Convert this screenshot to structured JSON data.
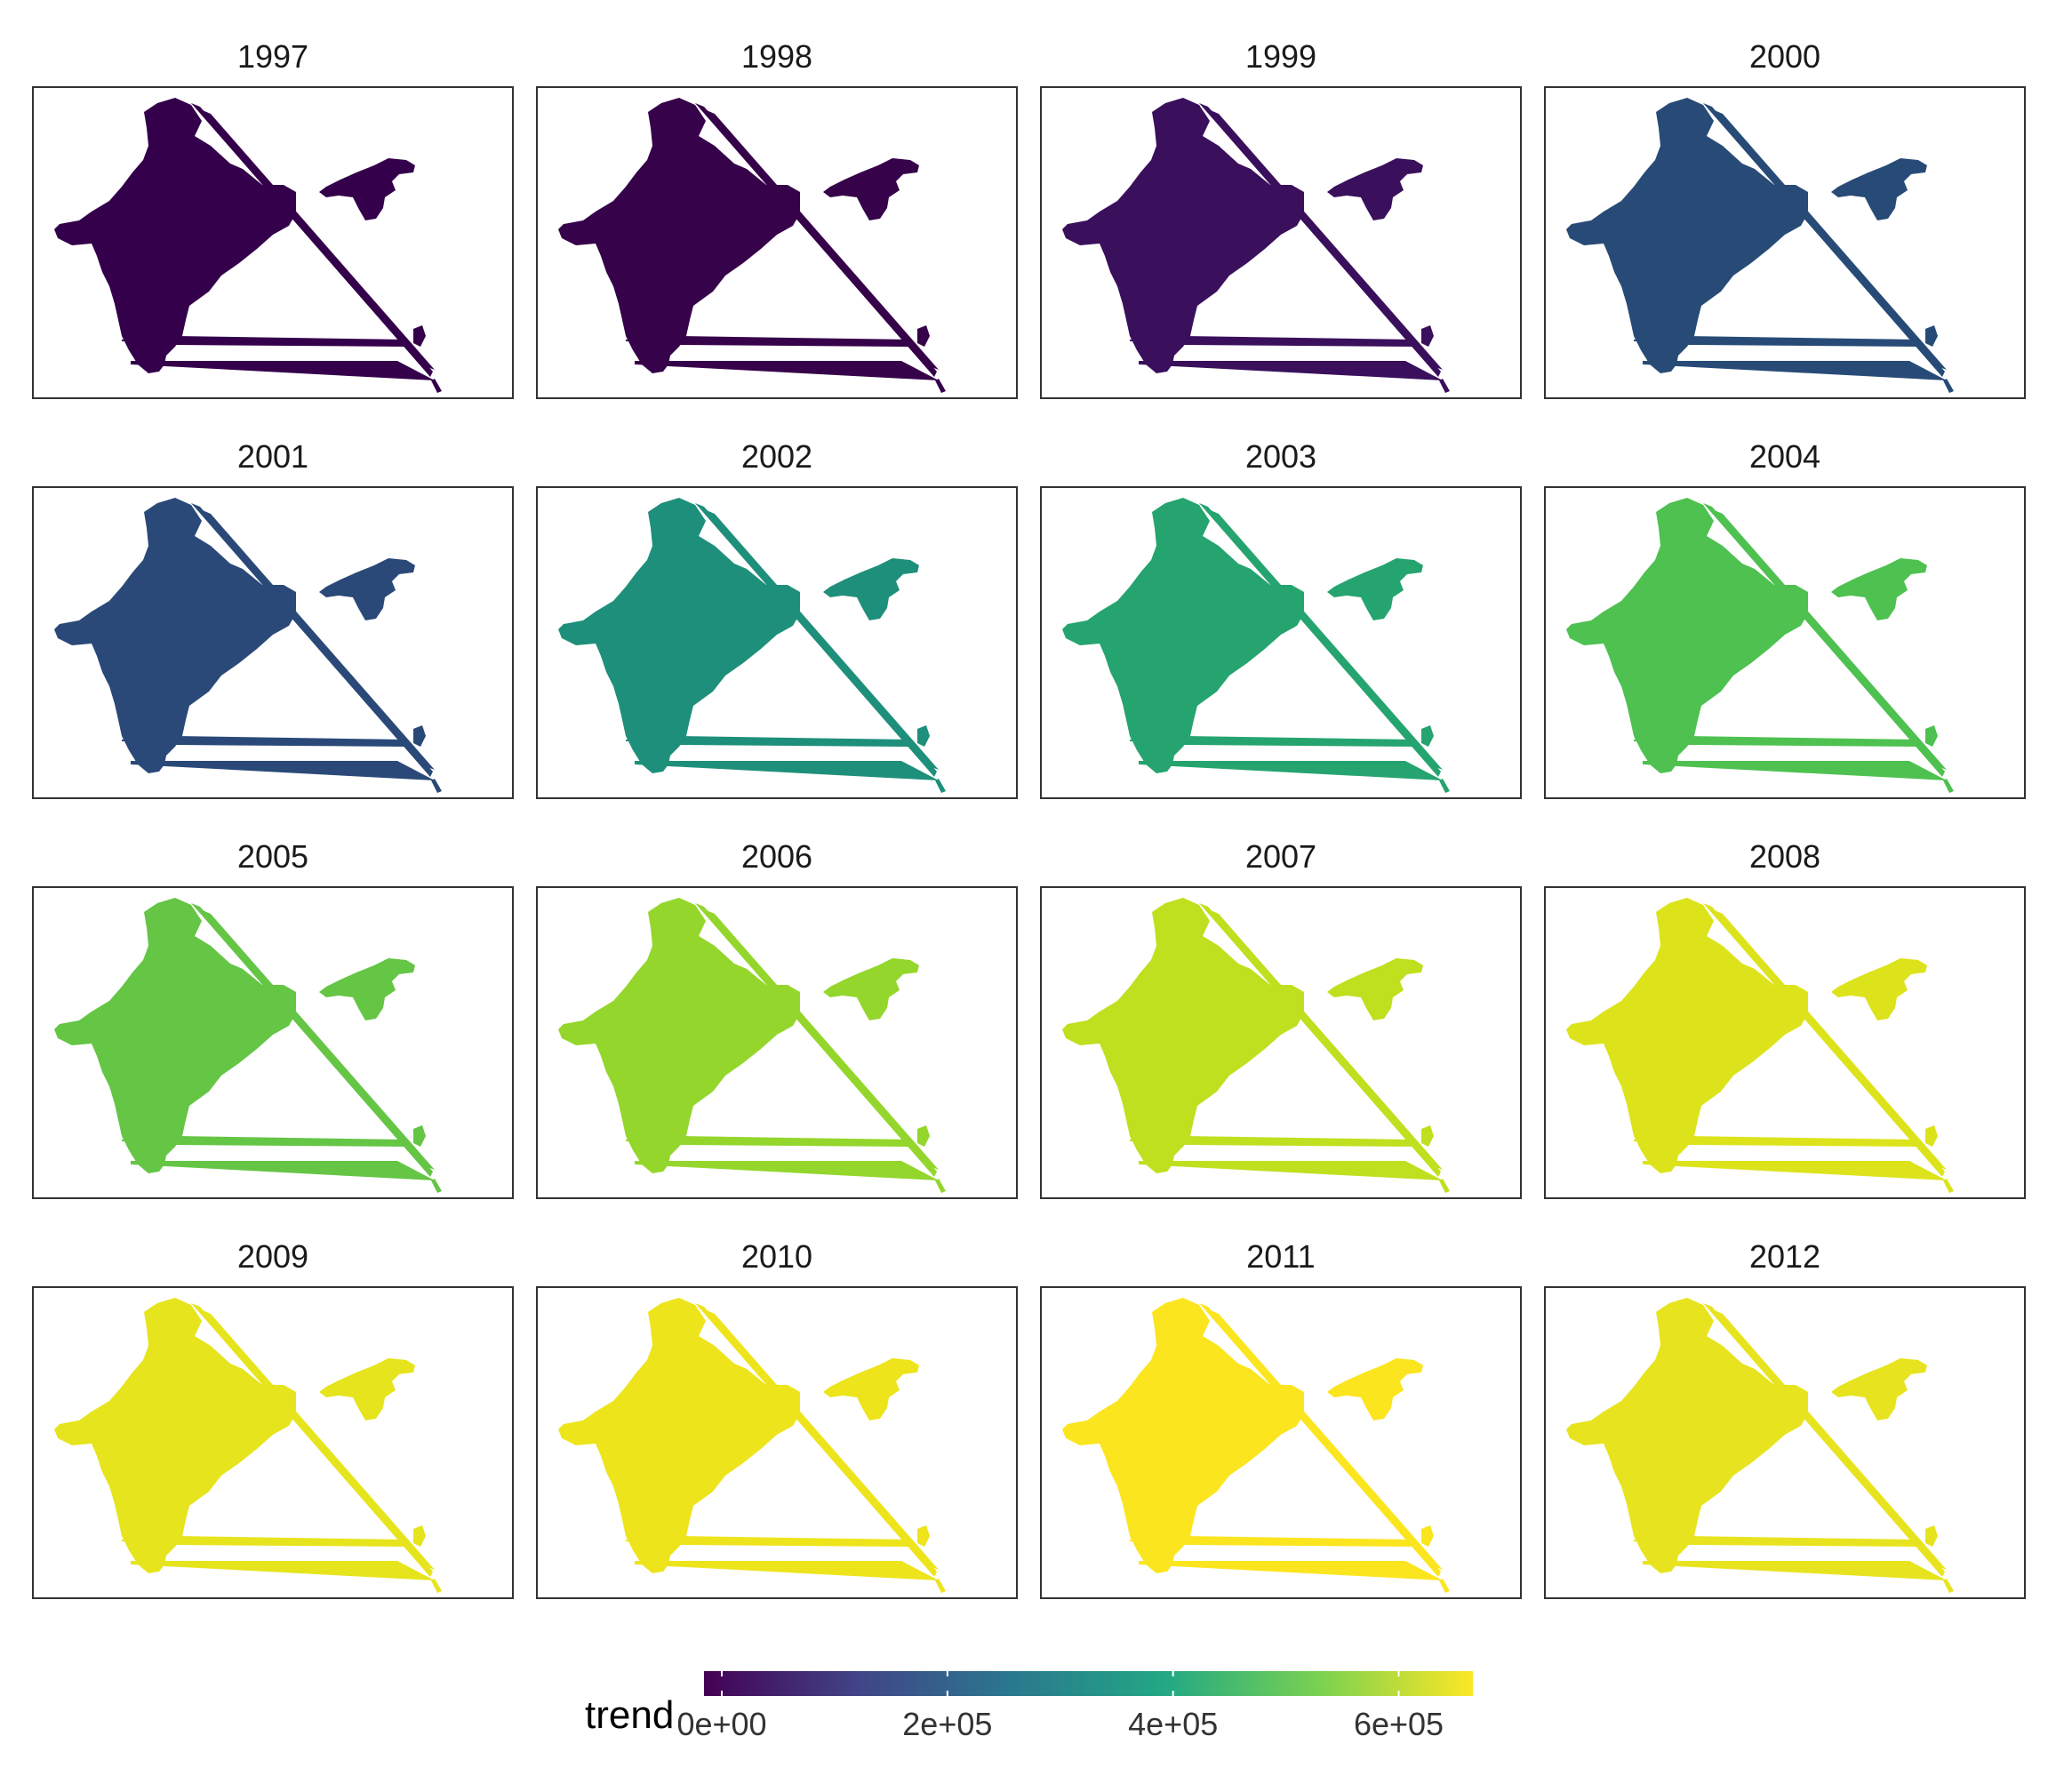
{
  "chart_data": {
    "type": "choropleth",
    "region": "India",
    "facet_variable": "year",
    "facets": [
      {
        "label": "1997",
        "trend": 0,
        "color": "#34004b"
      },
      {
        "label": "1998",
        "trend": 5000,
        "color": "#360249"
      },
      {
        "label": "1999",
        "trend": 40000,
        "color": "#3a0f5c"
      },
      {
        "label": "2000",
        "trend": 190000,
        "color": "#274b76"
      },
      {
        "label": "2001",
        "trend": 195000,
        "color": "#2a4978"
      },
      {
        "label": "2002",
        "trend": 340000,
        "color": "#1e8f7a"
      },
      {
        "label": "2003",
        "trend": 380000,
        "color": "#25a46f"
      },
      {
        "label": "2004",
        "trend": 450000,
        "color": "#4ec150"
      },
      {
        "label": "2005",
        "trend": 460000,
        "color": "#65c545"
      },
      {
        "label": "2006",
        "trend": 500000,
        "color": "#94d62c"
      },
      {
        "label": "2007",
        "trend": 550000,
        "color": "#bee01f"
      },
      {
        "label": "2008",
        "trend": 590000,
        "color": "#dde31b"
      },
      {
        "label": "2009",
        "trend": 610000,
        "color": "#e6e41c"
      },
      {
        "label": "2010",
        "trend": 625000,
        "color": "#ede41c"
      },
      {
        "label": "2011",
        "trend": 650000,
        "color": "#fbe51f"
      },
      {
        "label": "2012",
        "trend": 605000,
        "color": "#e7e41f"
      }
    ],
    "legend": {
      "title": "trend",
      "type": "colorbar",
      "position": "bottom",
      "min": 0,
      "max": 650000,
      "ticks": [
        {
          "value": 0,
          "label": "0e+00"
        },
        {
          "value": 200000,
          "label": "2e+05"
        },
        {
          "value": 400000,
          "label": "4e+05"
        },
        {
          "value": 600000,
          "label": "6e+05"
        }
      ],
      "colors": [
        "#440154",
        "#414487",
        "#2a788e",
        "#22a884",
        "#7ad151",
        "#fde725"
      ]
    }
  }
}
